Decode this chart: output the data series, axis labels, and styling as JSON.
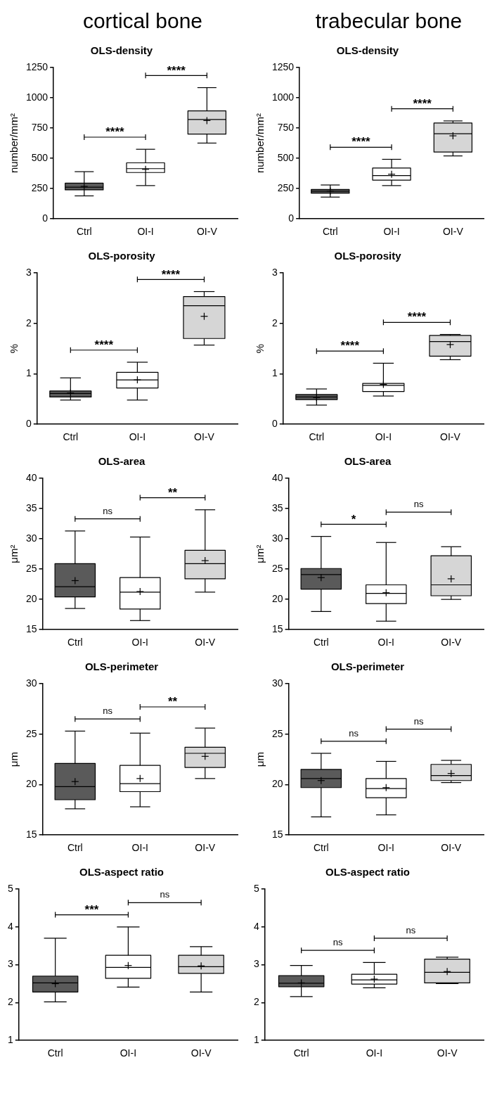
{
  "chart_data": [
    {
      "type": "box",
      "subtitle": "cortical bone",
      "title": "OLS-density",
      "ylabel": "number/mm²",
      "categories": [
        "Ctrl",
        "OI-I",
        "OI-V"
      ],
      "colors": [
        "#5a5a5a",
        "#ffffff",
        "#d6d6d6"
      ],
      "ylim": [
        0,
        1250
      ],
      "yticks": [
        0,
        250,
        500,
        750,
        1000,
        1250
      ],
      "annotations": [
        "****",
        "****"
      ],
      "boxes": [
        {
          "low": 190,
          "q1": 240,
          "median": 262,
          "q3": 295,
          "high": 390,
          "mean": 268
        },
        {
          "low": 275,
          "q1": 383,
          "median": 415,
          "q3": 463,
          "high": 575,
          "mean": 409
        },
        {
          "low": 626,
          "q1": 700,
          "median": 821,
          "q3": 892,
          "high": 1084,
          "mean": 812
        }
      ]
    },
    {
      "type": "box",
      "subtitle": "trabecular bone",
      "title": "OLS-density",
      "ylabel": "number/mm²",
      "categories": [
        "Ctrl",
        "OI-I",
        "OI-V"
      ],
      "colors": [
        "#5a5a5a",
        "#ffffff",
        "#d6d6d6"
      ],
      "ylim": [
        0,
        1250
      ],
      "yticks": [
        0,
        250,
        500,
        750,
        1000,
        1250
      ],
      "annotations": [
        "****",
        "****"
      ],
      "boxes": [
        {
          "low": 180,
          "q1": 212,
          "median": 228,
          "q3": 243,
          "high": 280,
          "mean": 230
        },
        {
          "low": 275,
          "q1": 320,
          "median": 358,
          "q3": 420,
          "high": 492,
          "mean": 369
        },
        {
          "low": 520,
          "q1": 552,
          "median": 703,
          "q3": 792,
          "high": 809,
          "mean": 686
        }
      ]
    },
    {
      "type": "box",
      "title": "OLS-porosity",
      "ylabel": "%",
      "categories": [
        "Ctrl",
        "OI-I",
        "OI-V"
      ],
      "colors": [
        "#5a5a5a",
        "#ffffff",
        "#d6d6d6"
      ],
      "ylim": [
        0,
        3
      ],
      "yticks": [
        0,
        1,
        2,
        3
      ],
      "annotations": [
        "****",
        "****"
      ],
      "boxes": [
        {
          "low": 0.48,
          "q1": 0.54,
          "median": 0.61,
          "q3": 0.66,
          "high": 0.92,
          "mean": 0.62
        },
        {
          "low": 0.48,
          "q1": 0.72,
          "median": 0.88,
          "q3": 1.03,
          "high": 1.23,
          "mean": 0.88
        },
        {
          "low": 1.57,
          "q1": 1.7,
          "median": 2.35,
          "q3": 2.53,
          "high": 2.63,
          "mean": 2.14
        }
      ]
    },
    {
      "type": "box",
      "title": "OLS-porosity",
      "ylabel": "%",
      "categories": [
        "Ctrl",
        "OI-I",
        "OI-V"
      ],
      "colors": [
        "#5a5a5a",
        "#ffffff",
        "#d6d6d6"
      ],
      "ylim": [
        0,
        3
      ],
      "yticks": [
        0,
        1,
        2,
        3
      ],
      "annotations": [
        "****",
        "****"
      ],
      "boxes": [
        {
          "low": 0.38,
          "q1": 0.49,
          "median": 0.54,
          "q3": 0.59,
          "high": 0.7,
          "mean": 0.53
        },
        {
          "low": 0.56,
          "q1": 0.65,
          "median": 0.77,
          "q3": 0.81,
          "high": 1.21,
          "mean": 0.79
        },
        {
          "low": 1.28,
          "q1": 1.35,
          "median": 1.64,
          "q3": 1.76,
          "high": 1.78,
          "mean": 1.58
        }
      ]
    },
    {
      "type": "box",
      "title": "OLS-area",
      "ylabel": "μm²",
      "categories": [
        "Ctrl",
        "OI-I",
        "OI-V"
      ],
      "colors": [
        "#5a5a5a",
        "#ffffff",
        "#d6d6d6"
      ],
      "ylim": [
        15,
        40
      ],
      "yticks": [
        15,
        20,
        25,
        30,
        35,
        40
      ],
      "annotations": [
        "ns",
        "**"
      ],
      "boxes": [
        {
          "low": 18.5,
          "q1": 20.4,
          "median": 22.1,
          "q3": 25.9,
          "high": 31.3,
          "mean": 23.1
        },
        {
          "low": 16.5,
          "q1": 18.4,
          "median": 21.2,
          "q3": 23.6,
          "high": 30.3,
          "mean": 21.3
        },
        {
          "low": 21.2,
          "q1": 23.4,
          "median": 25.9,
          "q3": 28.1,
          "high": 34.8,
          "mean": 26.4
        }
      ]
    },
    {
      "type": "box",
      "title": "OLS-area",
      "ylabel": "μm²",
      "categories": [
        "Ctrl",
        "OI-I",
        "OI-V"
      ],
      "colors": [
        "#5a5a5a",
        "#ffffff",
        "#d6d6d6"
      ],
      "ylim": [
        15,
        40
      ],
      "yticks": [
        15,
        20,
        25,
        30,
        35,
        40
      ],
      "annotations": [
        "*",
        "ns"
      ],
      "boxes": [
        {
          "low": 18.0,
          "q1": 21.7,
          "median": 24.1,
          "q3": 25.1,
          "high": 30.4,
          "mean": 23.6
        },
        {
          "low": 16.4,
          "q1": 19.3,
          "median": 21.0,
          "q3": 22.4,
          "high": 29.4,
          "mean": 21.1
        },
        {
          "low": 20.0,
          "q1": 20.6,
          "median": 22.4,
          "q3": 27.2,
          "high": 28.7,
          "mean": 23.4
        }
      ]
    },
    {
      "type": "box",
      "title": "OLS-perimeter",
      "ylabel": "μm",
      "categories": [
        "Ctrl",
        "OI-I",
        "OI-V"
      ],
      "colors": [
        "#5a5a5a",
        "#ffffff",
        "#d6d6d6"
      ],
      "ylim": [
        15,
        30
      ],
      "yticks": [
        15,
        20,
        25,
        30
      ],
      "annotations": [
        "ns",
        "**"
      ],
      "boxes": [
        {
          "low": 17.6,
          "q1": 18.5,
          "median": 19.8,
          "q3": 22.1,
          "high": 25.3,
          "mean": 20.3
        },
        {
          "low": 17.8,
          "q1": 19.3,
          "median": 20.1,
          "q3": 21.9,
          "high": 25.1,
          "mean": 20.6
        },
        {
          "low": 20.6,
          "q1": 21.7,
          "median": 23.1,
          "q3": 23.7,
          "high": 25.6,
          "mean": 22.8
        }
      ]
    },
    {
      "type": "box",
      "title": "OLS-perimeter",
      "ylabel": "μm",
      "categories": [
        "Ctrl",
        "OI-I",
        "OI-V"
      ],
      "colors": [
        "#5a5a5a",
        "#ffffff",
        "#d6d6d6"
      ],
      "ylim": [
        15,
        30
      ],
      "yticks": [
        15,
        20,
        25,
        30
      ],
      "annotations": [
        "ns",
        "ns"
      ],
      "boxes": [
        {
          "low": 16.8,
          "q1": 19.7,
          "median": 20.6,
          "q3": 21.5,
          "high": 23.1,
          "mean": 20.4
        },
        {
          "low": 17.0,
          "q1": 18.7,
          "median": 19.6,
          "q3": 20.6,
          "high": 22.3,
          "mean": 19.7
        },
        {
          "low": 20.2,
          "q1": 20.4,
          "median": 20.9,
          "q3": 22.0,
          "high": 22.4,
          "mean": 21.1
        }
      ]
    },
    {
      "type": "box",
      "title": "OLS-aspect ratio",
      "categories": [
        "Ctrl",
        "OI-I",
        "OI-V"
      ],
      "colors": [
        "#5a5a5a",
        "#ffffff",
        "#d6d6d6"
      ],
      "ylim": [
        1,
        5
      ],
      "yticks": [
        1,
        2,
        3,
        4,
        5
      ],
      "annotations": [
        "***",
        "ns"
      ],
      "boxes": [
        {
          "low": 2.02,
          "q1": 2.28,
          "median": 2.52,
          "q3": 2.7,
          "high": 3.7,
          "mean": 2.5
        },
        {
          "low": 2.41,
          "q1": 2.64,
          "median": 2.93,
          "q3": 3.25,
          "high": 4.0,
          "mean": 2.98
        },
        {
          "low": 2.28,
          "q1": 2.77,
          "median": 2.95,
          "q3": 3.25,
          "high": 3.48,
          "mean": 2.97
        }
      ]
    },
    {
      "type": "box",
      "title": "OLS-aspect ratio",
      "categories": [
        "Ctrl",
        "OI-I",
        "OI-V"
      ],
      "colors": [
        "#5a5a5a",
        "#ffffff",
        "#d6d6d6"
      ],
      "ylim": [
        1,
        5
      ],
      "yticks": [
        1,
        2,
        3,
        4,
        5
      ],
      "annotations": [
        "ns",
        "ns"
      ],
      "boxes": [
        {
          "low": 2.16,
          "q1": 2.42,
          "median": 2.51,
          "q3": 2.71,
          "high": 2.98,
          "mean": 2.52
        },
        {
          "low": 2.39,
          "q1": 2.49,
          "median": 2.6,
          "q3": 2.75,
          "high": 3.06,
          "mean": 2.62
        },
        {
          "low": 2.5,
          "q1": 2.52,
          "median": 2.8,
          "q3": 3.15,
          "high": 3.2,
          "mean": 2.82
        }
      ]
    }
  ]
}
